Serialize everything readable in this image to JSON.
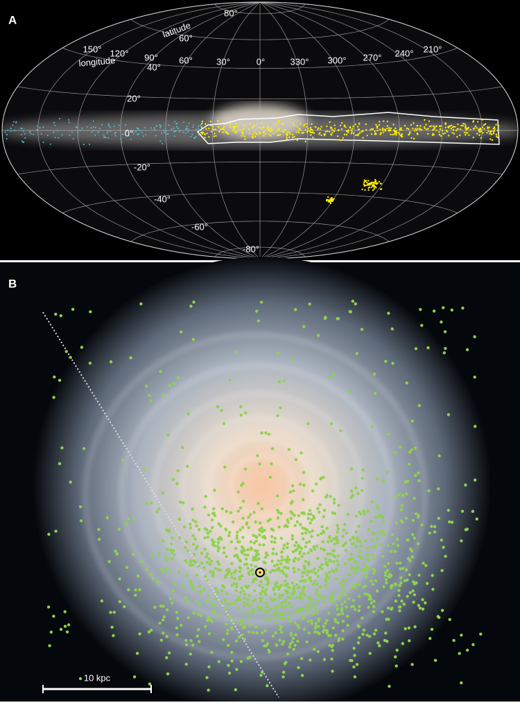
{
  "panel_a": {
    "label": "A",
    "latitude_title": "latitude",
    "longitude_title": "longitude",
    "longitude_labels": [
      "150°",
      "120°",
      "90°",
      "60°",
      "30°",
      "0°",
      "330°",
      "300°",
      "270°",
      "240°",
      "210°"
    ],
    "latitude_labels": [
      "80°",
      "60°",
      "40°",
      "20°",
      "0°",
      "-20°",
      "-40°",
      "-60°",
      "-80°"
    ]
  },
  "panel_b": {
    "label": "B",
    "scale_bar": "10 kpc"
  }
}
